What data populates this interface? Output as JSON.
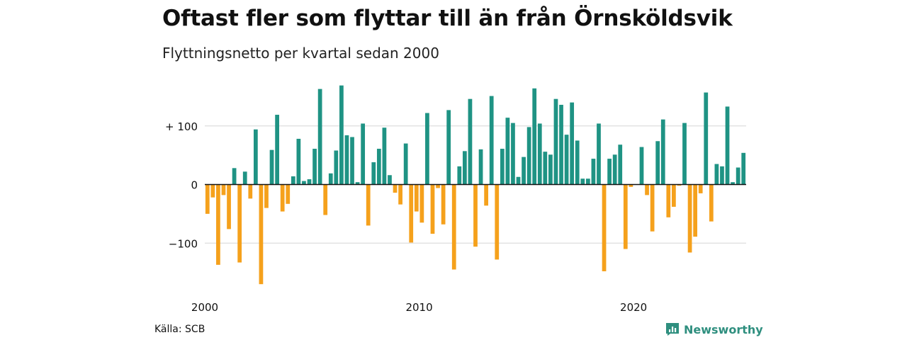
{
  "title": "Oftast fler som flyttar till än från Örnsköldsvik",
  "subtitle": "Flyttningsnetto per kvartal sedan 2000",
  "source": "Källa: SCB",
  "brand": {
    "name": "Newsworthy",
    "icon": "newsworthy-logo-icon"
  },
  "colors": {
    "positive": "#1f9384",
    "negative": "#f5a11c",
    "grid": "#dddddd",
    "zero": "#111111"
  },
  "chart_data": {
    "type": "bar",
    "start_year": 2000,
    "ylim": [
      -175,
      175
    ],
    "y_ticks": [
      {
        "value": 100,
        "label": "+ 100"
      },
      {
        "value": 0,
        "label": "0"
      },
      {
        "value": -100,
        "label": "−100"
      }
    ],
    "x_ticks": [
      {
        "year": 2000,
        "label": "2000"
      },
      {
        "year": 2010,
        "label": "2010"
      },
      {
        "year": 2020,
        "label": "2020"
      }
    ],
    "values": [
      -50,
      -22,
      -137,
      -18,
      -76,
      28,
      -133,
      22,
      -24,
      94,
      -170,
      -40,
      59,
      119,
      -46,
      -33,
      14,
      78,
      6,
      9,
      61,
      163,
      -52,
      19,
      58,
      169,
      84,
      81,
      4,
      104,
      -70,
      38,
      61,
      97,
      16,
      -14,
      -34,
      70,
      -99,
      -46,
      -65,
      122,
      -84,
      -6,
      -68,
      127,
      -145,
      31,
      57,
      146,
      -106,
      60,
      -36,
      151,
      -128,
      61,
      114,
      105,
      13,
      47,
      98,
      164,
      104,
      56,
      51,
      146,
      136,
      85,
      140,
      75,
      10,
      10,
      44,
      104,
      -148,
      44,
      51,
      68,
      -110,
      -4,
      0,
      64,
      -18,
      -80,
      74,
      111,
      -56,
      -38,
      -2,
      105,
      -116,
      -89,
      -15,
      157,
      -63,
      35,
      31,
      133,
      4,
      29,
      54
    ]
  }
}
